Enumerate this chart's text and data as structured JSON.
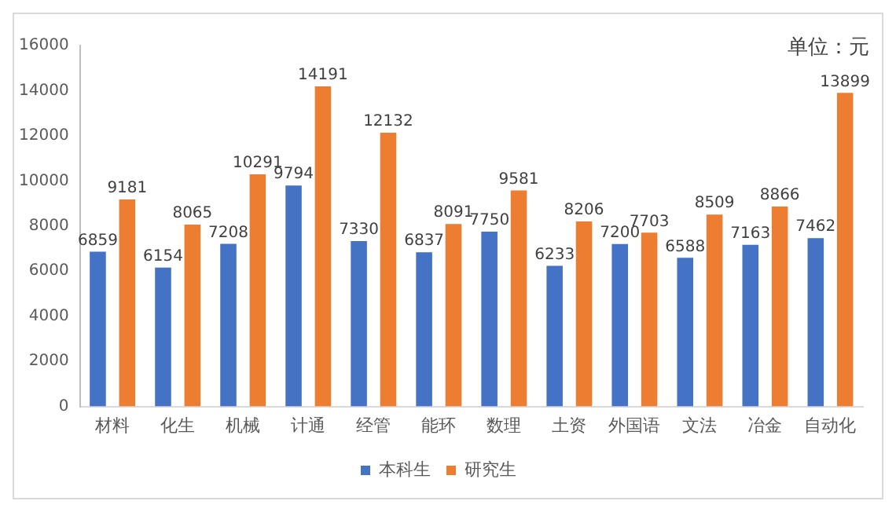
{
  "chart_data": {
    "type": "bar",
    "annotations": [
      "单位：元"
    ],
    "categories": [
      "材料",
      "化生",
      "机械",
      "计通",
      "经管",
      "能环",
      "数理",
      "土资",
      "外国语",
      "文法",
      "冶金",
      "自动化"
    ],
    "series": [
      {
        "name": "本科生",
        "color": "#4472c4",
        "values": [
          6859,
          6154,
          7208,
          9794,
          7330,
          6837,
          7750,
          6233,
          7200,
          6588,
          7163,
          7462
        ]
      },
      {
        "name": "研究生",
        "color": "#ed7d31",
        "values": [
          9181,
          8065,
          10291,
          14191,
          12132,
          8091,
          9581,
          8206,
          7703,
          8509,
          8866,
          13899
        ]
      }
    ],
    "ylim": [
      0,
      16000
    ],
    "yticks": [
      0,
      2000,
      4000,
      6000,
      8000,
      10000,
      12000,
      14000,
      16000
    ],
    "grid": false,
    "legend": "bottom",
    "data_labels": true
  }
}
